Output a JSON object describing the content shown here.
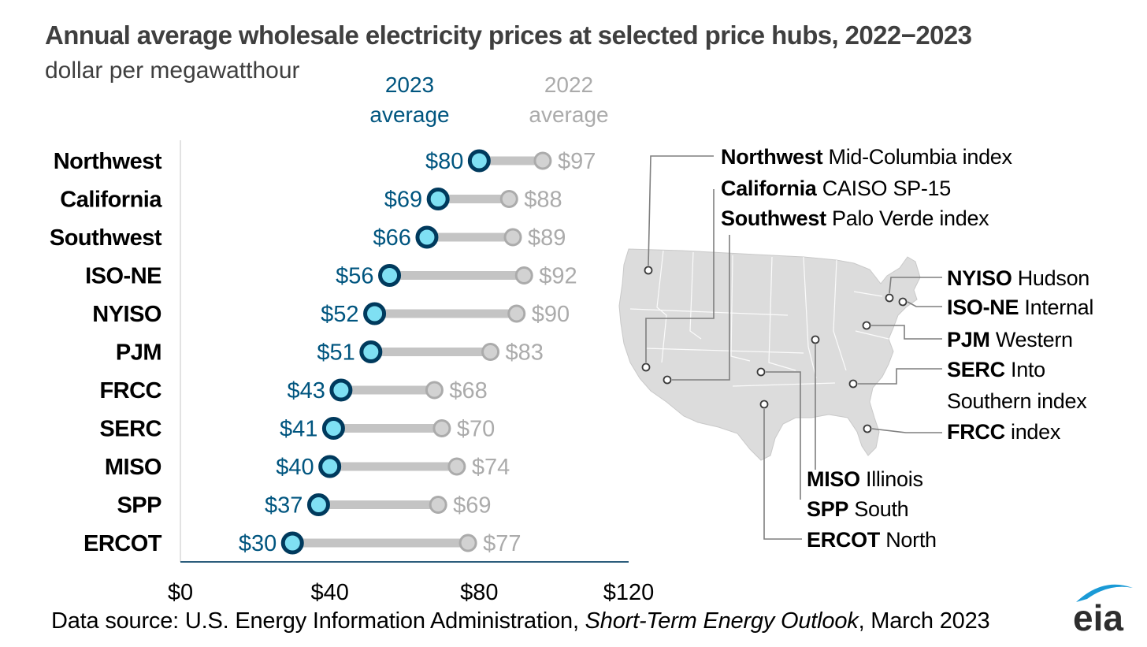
{
  "title": "Annual average wholesale electricity prices at selected price hubs, 2022−2023",
  "subtitle": "dollar per megawatthour",
  "source": {
    "prefix": "Data source: U.S. Energy Information Administration, ",
    "italic": "Short-Term Energy Outlook",
    "suffix": ", March 2023"
  },
  "logo_text": "eia",
  "colors": {
    "series_2023_fill": "#7fe0f3",
    "series_2023_stroke": "#003a5d",
    "series_2023_label": "#00557f",
    "series_2022": "#ababab",
    "connector": "#c4c4c4",
    "axis": "#2c5d7c",
    "map_fill": "#dcdcdc",
    "text": "#000000"
  },
  "chart_data": {
    "type": "dumbbell",
    "series": [
      {
        "name": "2023 average",
        "legend_lines": [
          "2023",
          "average"
        ],
        "values": [
          80,
          69,
          66,
          56,
          52,
          51,
          43,
          41,
          40,
          37,
          30
        ],
        "labels": [
          "$80",
          "$69",
          "$66",
          "$56",
          "$52",
          "$51",
          "$43",
          "$41",
          "$40",
          "$37",
          "$30"
        ]
      },
      {
        "name": "2022 average",
        "legend_lines": [
          "2022",
          "average"
        ],
        "values": [
          97,
          88,
          89,
          92,
          90,
          83,
          68,
          70,
          74,
          69,
          77
        ],
        "labels": [
          "$97",
          "$88",
          "$89",
          "$92",
          "$90",
          "$83",
          "$68",
          "$70",
          "$74",
          "$69",
          "$77"
        ]
      }
    ],
    "categories": [
      "Northwest",
      "California",
      "Southwest",
      "ISO-NE",
      "NYISO",
      "PJM",
      "FRCC",
      "SERC",
      "MISO",
      "SPP",
      "ERCOT"
    ],
    "xlim": [
      0,
      120
    ],
    "xticks": [
      0,
      40,
      80,
      120
    ],
    "xtick_labels": [
      "$0",
      "$40",
      "$80",
      "$120"
    ],
    "grid": false
  },
  "map": {
    "hubs": [
      {
        "bold": "Northwest",
        "rest": " Mid-Columbia index"
      },
      {
        "bold": "California",
        "rest": " CAISO SP-15"
      },
      {
        "bold": "Southwest",
        "rest": " Palo Verde index"
      },
      {
        "bold": "NYISO",
        "rest": " Hudson"
      },
      {
        "bold": "ISO-NE",
        "rest": " Internal"
      },
      {
        "bold": "PJM",
        "rest": " Western"
      },
      {
        "bold": "SERC",
        "rest": " Into",
        "line2": "Southern index"
      },
      {
        "bold": "FRCC",
        "rest": " index"
      },
      {
        "bold": "MISO",
        "rest": " Illinois"
      },
      {
        "bold": "SPP",
        "rest": " South"
      },
      {
        "bold": "ERCOT",
        "rest": " North"
      }
    ]
  }
}
